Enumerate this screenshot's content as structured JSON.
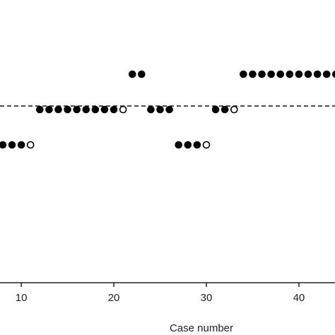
{
  "chart_data": {
    "type": "scatter",
    "xlabel": "Case number",
    "x": [
      8,
      9,
      10,
      11,
      12,
      13,
      14,
      15,
      16,
      17,
      18,
      19,
      20,
      21,
      22,
      23,
      24,
      25,
      26,
      27,
      28,
      29,
      30,
      31,
      32,
      33,
      34,
      35,
      36,
      37,
      38,
      39,
      40,
      41,
      42,
      43,
      44
    ],
    "values": [
      1,
      1,
      1,
      1,
      2,
      2,
      2,
      2,
      2,
      2,
      2,
      2,
      2,
      2,
      3,
      3,
      2,
      2,
      2,
      1,
      1,
      1,
      1,
      2,
      2,
      2,
      3,
      3,
      3,
      3,
      3,
      3,
      3,
      3,
      3,
      3,
      3
    ],
    "point_fills": [
      "#000000",
      "#000000",
      "#000000",
      "#ffffff",
      "#000000",
      "#000000",
      "#000000",
      "#000000",
      "#000000",
      "#000000",
      "#000000",
      "#000000",
      "#000000",
      "#ffffff",
      "#000000",
      "#000000",
      "#000000",
      "#000000",
      "#000000",
      "#000000",
      "#000000",
      "#000000",
      "#ffffff",
      "#000000",
      "#000000",
      "#ffffff",
      "#000000",
      "#000000",
      "#000000",
      "#000000",
      "#000000",
      "#000000",
      "#000000",
      "#000000",
      "#000000",
      "#000000",
      "#000000"
    ],
    "color": "#000000",
    "reference_line": 2.1,
    "xlim": [
      7.7,
      43.9
    ],
    "xticks": [
      10,
      20,
      30,
      40
    ],
    "ylim": [
      -2.9,
      5.1
    ]
  }
}
